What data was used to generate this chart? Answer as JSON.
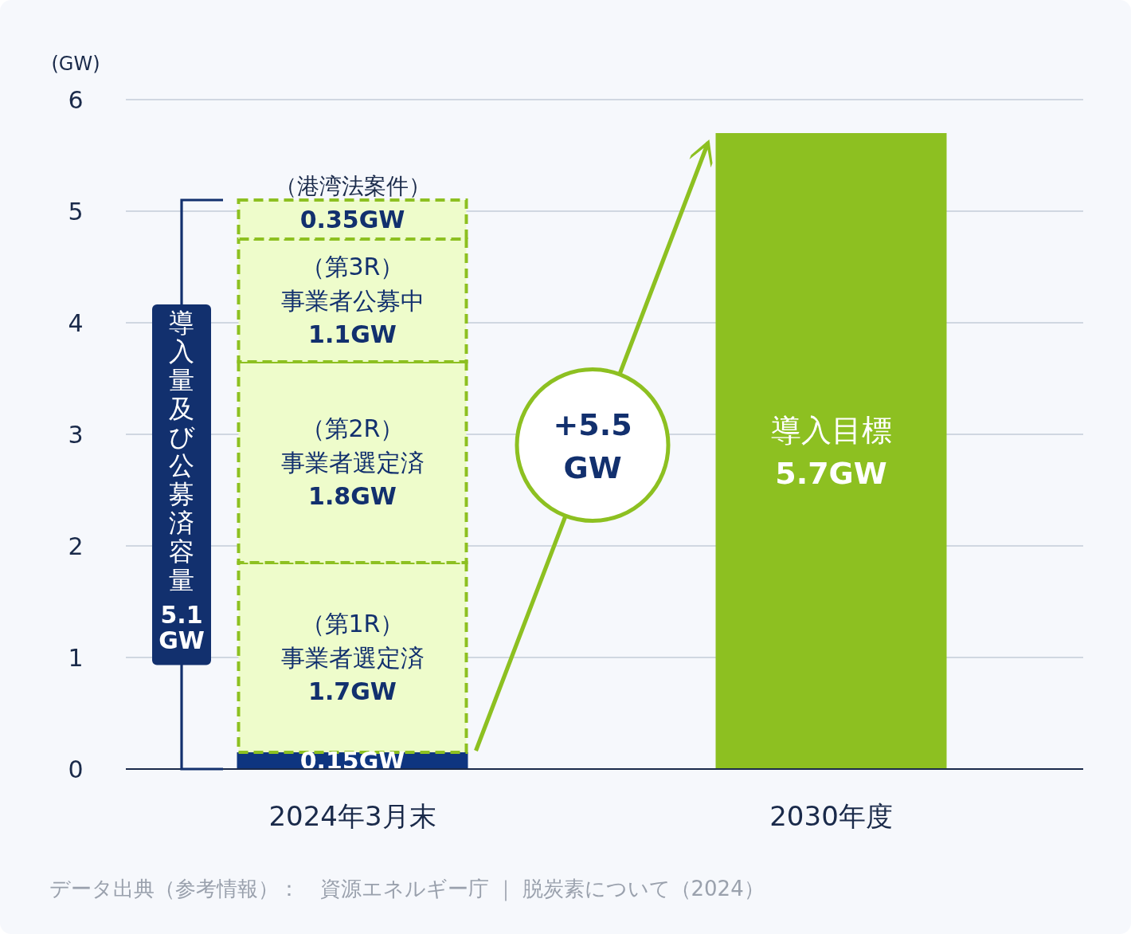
{
  "chart_data": {
    "type": "bar",
    "stacked": true,
    "ylabel": "(GW)",
    "categories": [
      "2024年3月末",
      "2030年度"
    ],
    "ylim": [
      0,
      6
    ],
    "yticks": [
      0,
      1,
      2,
      3,
      4,
      5,
      6
    ],
    "grid": "y",
    "series": [
      {
        "name": null,
        "color": "#0e3580",
        "values": [
          0.15,
          null
        ],
        "value_labels": [
          "0.15GW",
          null
        ]
      },
      {
        "name": "（第1R）事業者選定済",
        "color": "#eefccb",
        "line_style": "dashed",
        "values": [
          1.7,
          null
        ],
        "value_labels": [
          "1.7GW",
          null
        ]
      },
      {
        "name": "（第2R）事業者選定済",
        "color": "#eefccb",
        "line_style": "dashed",
        "values": [
          1.8,
          null
        ],
        "value_labels": [
          "1.8GW",
          null
        ]
      },
      {
        "name": "（第3R）事業者公募中",
        "color": "#eefccb",
        "line_style": "dashed",
        "values": [
          1.1,
          null
        ],
        "value_labels": [
          "1.1GW",
          null
        ]
      },
      {
        "name": "（港湾法案件）",
        "color": "#eefccb",
        "line_style": "dashed",
        "values": [
          0.35,
          null
        ],
        "value_labels": [
          "0.35GW",
          null
        ]
      },
      {
        "name": "導入目標",
        "color": "#8dc021",
        "values": [
          null,
          5.7
        ],
        "value_labels": [
          null,
          "5.7GW"
        ]
      }
    ],
    "annotations": [
      "導入量及び公募済容量 5.1 GW",
      "+5.5 GW",
      "データ出典（参考情報）：　資源エネルギー庁 ｜ 脱炭素について（2024）"
    ]
  }
}
